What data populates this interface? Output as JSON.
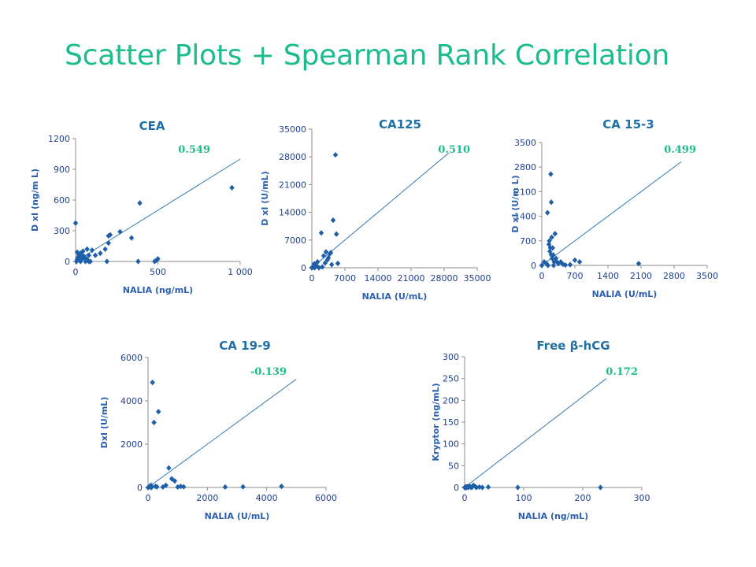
{
  "slide": {
    "title": "Scatter Plots + Spearman Rank Correlation"
  },
  "colors": {
    "title": "#1cbc8c",
    "panel_title": "#1f6fa8",
    "coefficient": "#1cbc8c",
    "points": "#1f5fa8",
    "line": "#2f78b4",
    "axis_text": "#1f3f8f"
  },
  "chart_data": [
    {
      "type": "scatter",
      "title": "CEA",
      "coefficient": "0.549",
      "xlabel": "NALIA (ng/mL)",
      "ylabel": "D xI (ng/m L)",
      "xlim": [
        0,
        1000
      ],
      "ylim": [
        0,
        1200
      ],
      "xticks": [
        0,
        500,
        1000
      ],
      "xtick_labels": [
        "0",
        "500",
        "1 000"
      ],
      "yticks": [
        0,
        300,
        600,
        900,
        1200
      ],
      "ytick_labels": [
        "0",
        "300",
        "600",
        "900",
        "1200"
      ],
      "line": {
        "x": [
          0,
          1000
        ],
        "y": [
          0,
          1000
        ]
      },
      "points": {
        "x": [
          0,
          5,
          10,
          15,
          20,
          25,
          30,
          40,
          50,
          60,
          30,
          45,
          55,
          70,
          80,
          90,
          100,
          60,
          70,
          20,
          10,
          40,
          80,
          120,
          150,
          180,
          190,
          200,
          200,
          210,
          270,
          340,
          380,
          390,
          480,
          490,
          500,
          950
        ],
        "y": [
          375,
          0,
          20,
          40,
          60,
          10,
          80,
          30,
          50,
          20,
          0,
          100,
          40,
          120,
          60,
          0,
          110,
          0,
          20,
          30,
          90,
          50,
          0,
          60,
          80,
          120,
          0,
          180,
          250,
          260,
          290,
          230,
          0,
          570,
          0,
          10,
          25,
          720
        ]
      }
    },
    {
      "type": "scatter",
      "title": "CA125",
      "coefficient": "0.510",
      "xlabel": "NALIA (U/mL)",
      "ylabel": "D xI (U/mL)",
      "xlim": [
        0,
        35000
      ],
      "ylim": [
        0,
        35000
      ],
      "xticks": [
        0,
        7000,
        14000,
        21000,
        28000,
        35000
      ],
      "xtick_labels": [
        "0",
        "7000",
        "14000",
        "21000",
        "28000",
        "35000"
      ],
      "yticks": [
        0,
        7000,
        14000,
        21000,
        28000,
        35000
      ],
      "ytick_labels": [
        "0",
        "7000",
        "14000",
        "21000",
        "28000",
        "35000"
      ],
      "line": {
        "x": [
          0,
          29000
        ],
        "y": [
          0,
          29000
        ]
      },
      "points": {
        "x": [
          0,
          300,
          500,
          800,
          1200,
          1500,
          2000,
          2500,
          3000,
          3500,
          4000,
          4500,
          5000,
          5200,
          2200,
          2800,
          3300,
          3800,
          1000,
          600,
          4200,
          5500
        ],
        "y": [
          0,
          200,
          1000,
          500,
          1500,
          0,
          8800,
          3000,
          4000,
          2500,
          3800,
          12000,
          28500,
          8500,
          200,
          1200,
          2000,
          3500,
          500,
          0,
          800,
          1100
        ]
      }
    },
    {
      "type": "scatter",
      "title": "CA 15-3",
      "coefficient": "0.499",
      "xlabel": "NALIA (U/mL)",
      "ylabel": "D xI (U/m L)",
      "xlim": [
        0,
        3500
      ],
      "ylim": [
        0,
        3500
      ],
      "xticks": [
        0,
        700,
        1400,
        2100,
        2800,
        3500
      ],
      "xtick_labels": [
        "0",
        "700",
        "1400",
        "2100",
        "2800",
        "3500"
      ],
      "yticks": [
        0,
        700,
        1400,
        2100,
        2800,
        3500
      ],
      "ytick_labels": [
        "0",
        "700",
        "1400",
        "2100",
        "2800",
        "3500"
      ],
      "line": {
        "x": [
          0,
          2950
        ],
        "y": [
          0,
          2950
        ]
      },
      "points": {
        "x": [
          0,
          50,
          100,
          120,
          150,
          170,
          190,
          200,
          210,
          220,
          230,
          240,
          260,
          280,
          300,
          320,
          350,
          400,
          450,
          500,
          600,
          700,
          800,
          2050,
          130,
          160,
          180,
          250,
          200
        ],
        "y": [
          0,
          100,
          50,
          1500,
          600,
          400,
          2600,
          1800,
          800,
          200,
          500,
          300,
          100,
          900,
          200,
          100,
          50,
          100,
          30,
          10,
          20,
          150,
          100,
          50,
          0,
          700,
          500,
          0,
          300
        ]
      }
    },
    {
      "type": "scatter",
      "title": "CA 19-9",
      "coefficient": "-0.139",
      "xlabel": "NALIA (U/mL)",
      "ylabel": "DxI (U/mL)",
      "xlim": [
        0,
        6000
      ],
      "ylim": [
        0,
        6000
      ],
      "xticks": [
        0,
        2000,
        4000,
        6000
      ],
      "xtick_labels": [
        "0",
        "2000",
        "4000",
        "6000"
      ],
      "yticks": [
        0,
        2000,
        4000,
        6000
      ],
      "ytick_labels": [
        "0",
        "2000",
        "4000",
        "6000"
      ],
      "line": {
        "x": [
          0,
          5000
        ],
        "y": [
          0,
          5000
        ]
      },
      "points": {
        "x": [
          0,
          50,
          100,
          150,
          200,
          250,
          300,
          350,
          500,
          600,
          700,
          800,
          900,
          1000,
          1100,
          1200,
          2600,
          3200,
          4500,
          100,
          120
        ],
        "y": [
          0,
          50,
          100,
          4850,
          3000,
          50,
          30,
          3500,
          20,
          100,
          900,
          400,
          300,
          20,
          50,
          30,
          20,
          30,
          50,
          0,
          10
        ]
      }
    },
    {
      "type": "scatter",
      "title": "Free β-hCG",
      "coefficient": "0.172",
      "xlabel": "NALIA (ng/mL)",
      "ylabel": "Kryptor (ng/mL)",
      "xlim": [
        0,
        300
      ],
      "ylim": [
        0,
        300
      ],
      "xticks": [
        0,
        100,
        200,
        300
      ],
      "xtick_labels": [
        "0",
        "100",
        "200",
        "300"
      ],
      "yticks": [
        0,
        50,
        100,
        150,
        200,
        250,
        300
      ],
      "ytick_labels": [
        "0",
        "50",
        "100",
        "150",
        "200",
        "250",
        "300"
      ],
      "line": {
        "x": [
          0,
          240
        ],
        "y": [
          0,
          250
        ]
      },
      "points": {
        "x": [
          0,
          1,
          2,
          3,
          4,
          5,
          6,
          8,
          10,
          12,
          15,
          18,
          20,
          25,
          30,
          40,
          90,
          230
        ],
        "y": [
          0,
          0,
          1,
          0,
          2,
          1,
          0,
          3,
          1,
          0,
          5,
          2,
          0,
          1,
          0,
          1,
          0,
          0
        ]
      }
    }
  ]
}
